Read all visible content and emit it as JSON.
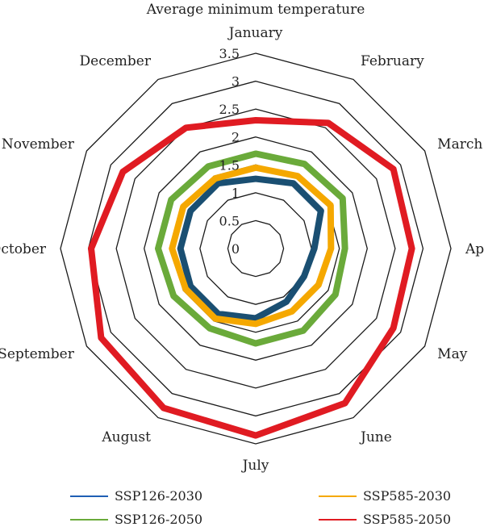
{
  "chart_data": {
    "type": "radar",
    "title": "Average minimum temperature",
    "categories": [
      "January",
      "February",
      "March",
      "April",
      "May",
      "June",
      "July",
      "August",
      "September",
      "October",
      "November",
      "December"
    ],
    "radial_ticks": [
      "0",
      "0.5",
      "1",
      "1.5",
      "2",
      "2.5",
      "3",
      "3.5"
    ],
    "rlim": [
      0,
      3.5
    ],
    "grid": true,
    "legend_position": "bottom",
    "series": [
      {
        "name": "SSP126-2030",
        "color": "#1a4f72",
        "values": [
          1.25,
          1.35,
          1.35,
          1.05,
          1.0,
          1.1,
          1.25,
          1.35,
          1.35,
          1.35,
          1.35,
          1.35
        ]
      },
      {
        "name": "SSP126-2050",
        "color": "#6aaa3a",
        "values": [
          1.7,
          1.75,
          1.8,
          1.6,
          1.65,
          1.7,
          1.7,
          1.65,
          1.7,
          1.75,
          1.75,
          1.7
        ]
      },
      {
        "name": "SSP585-2030",
        "color": "#f5a800",
        "values": [
          1.45,
          1.5,
          1.55,
          1.35,
          1.3,
          1.3,
          1.35,
          1.45,
          1.45,
          1.5,
          1.5,
          1.45
        ]
      },
      {
        "name": "SSP585-2050",
        "color": "#e01b22",
        "values": [
          2.3,
          2.6,
          2.85,
          2.8,
          2.85,
          3.2,
          3.35,
          3.3,
          3.2,
          2.95,
          2.75,
          2.5
        ]
      }
    ]
  }
}
